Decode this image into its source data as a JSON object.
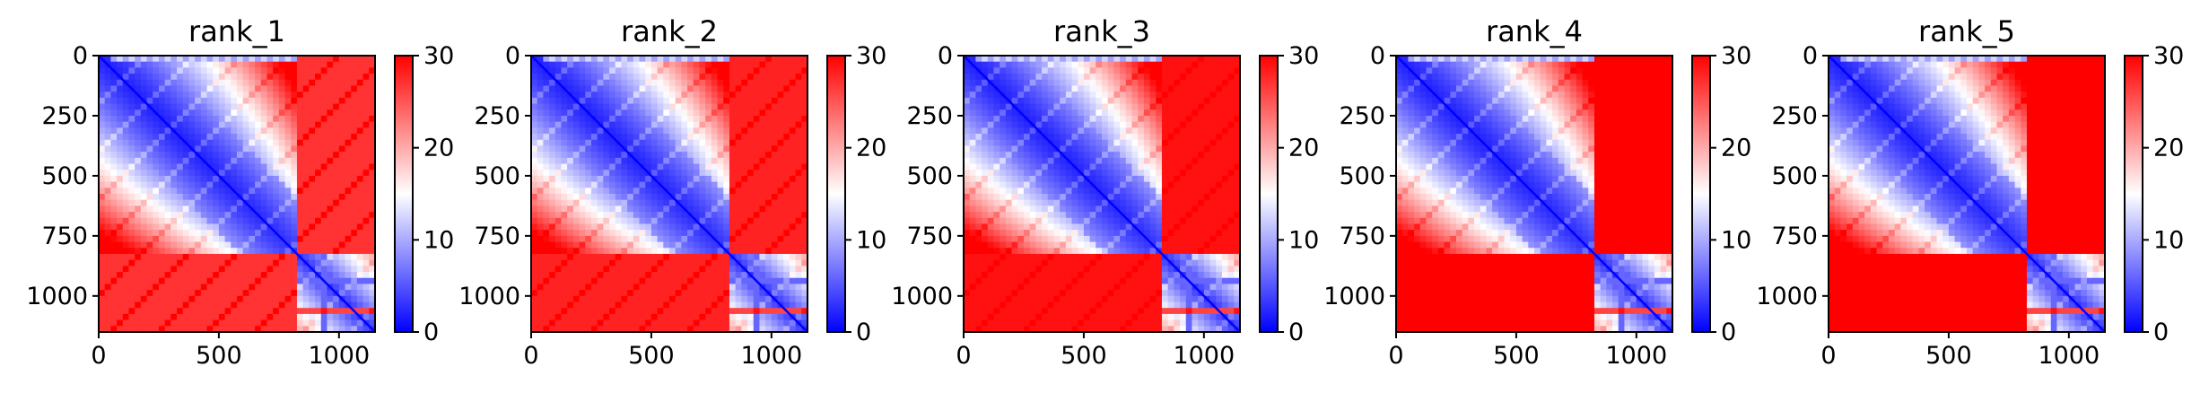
{
  "chart_data": [
    {
      "type": "heatmap",
      "title": "rank_1",
      "xlabel": "",
      "ylabel": "",
      "matrix_size": 1150,
      "xticks": [
        0,
        500,
        1000
      ],
      "yticks": [
        0,
        250,
        500,
        750,
        1000
      ],
      "xlim": [
        0,
        1150
      ],
      "ylim": [
        1150,
        0
      ],
      "colorbar": {
        "colormap": "bwr",
        "range": [
          0,
          30
        ],
        "ticks": [
          0,
          10,
          20,
          30
        ]
      },
      "structure": {
        "block_boundary": 820,
        "low_region": "within-block near diagonal",
        "high_region": "between blocks"
      }
    },
    {
      "type": "heatmap",
      "title": "rank_2",
      "xlabel": "",
      "ylabel": "",
      "matrix_size": 1150,
      "xticks": [
        0,
        500,
        1000
      ],
      "yticks": [
        0,
        250,
        500,
        750,
        1000
      ],
      "xlim": [
        0,
        1150
      ],
      "ylim": [
        1150,
        0
      ],
      "colorbar": {
        "colormap": "bwr",
        "range": [
          0,
          30
        ],
        "ticks": [
          0,
          10,
          20,
          30
        ]
      },
      "structure": {
        "block_boundary": 820,
        "low_region": "within-block near diagonal",
        "high_region": "between blocks"
      }
    },
    {
      "type": "heatmap",
      "title": "rank_3",
      "xlabel": "",
      "ylabel": "",
      "matrix_size": 1150,
      "xticks": [
        0,
        500,
        1000
      ],
      "yticks": [
        0,
        250,
        500,
        750,
        1000
      ],
      "xlim": [
        0,
        1150
      ],
      "ylim": [
        1150,
        0
      ],
      "colorbar": {
        "colormap": "bwr",
        "range": [
          0,
          30
        ],
        "ticks": [
          0,
          10,
          20,
          30
        ]
      },
      "structure": {
        "block_boundary": 820,
        "low_region": "within-block near diagonal",
        "high_region": "between blocks"
      }
    },
    {
      "type": "heatmap",
      "title": "rank_4",
      "xlabel": "",
      "ylabel": "",
      "matrix_size": 1150,
      "xticks": [
        0,
        500,
        1000
      ],
      "yticks": [
        0,
        250,
        500,
        750,
        1000
      ],
      "xlim": [
        0,
        1150
      ],
      "ylim": [
        1150,
        0
      ],
      "colorbar": {
        "colormap": "bwr",
        "range": [
          0,
          30
        ],
        "ticks": [
          0,
          10,
          20,
          30
        ]
      },
      "structure": {
        "block_boundary": 820,
        "low_region": "within-block near diagonal",
        "high_region": "between blocks"
      }
    },
    {
      "type": "heatmap",
      "title": "rank_5",
      "xlabel": "",
      "ylabel": "",
      "matrix_size": 1150,
      "xticks": [
        0,
        500,
        1000
      ],
      "yticks": [
        0,
        250,
        500,
        750,
        1000
      ],
      "xlim": [
        0,
        1150
      ],
      "ylim": [
        1150,
        0
      ],
      "colorbar": {
        "colormap": "bwr",
        "range": [
          0,
          30
        ],
        "ticks": [
          0,
          10,
          20,
          30
        ]
      },
      "structure": {
        "block_boundary": 820,
        "low_region": "within-block near diagonal",
        "high_region": "between blocks"
      }
    }
  ],
  "colors": {
    "low": "#0000ff",
    "mid": "#ffffff",
    "high": "#ff0000"
  }
}
